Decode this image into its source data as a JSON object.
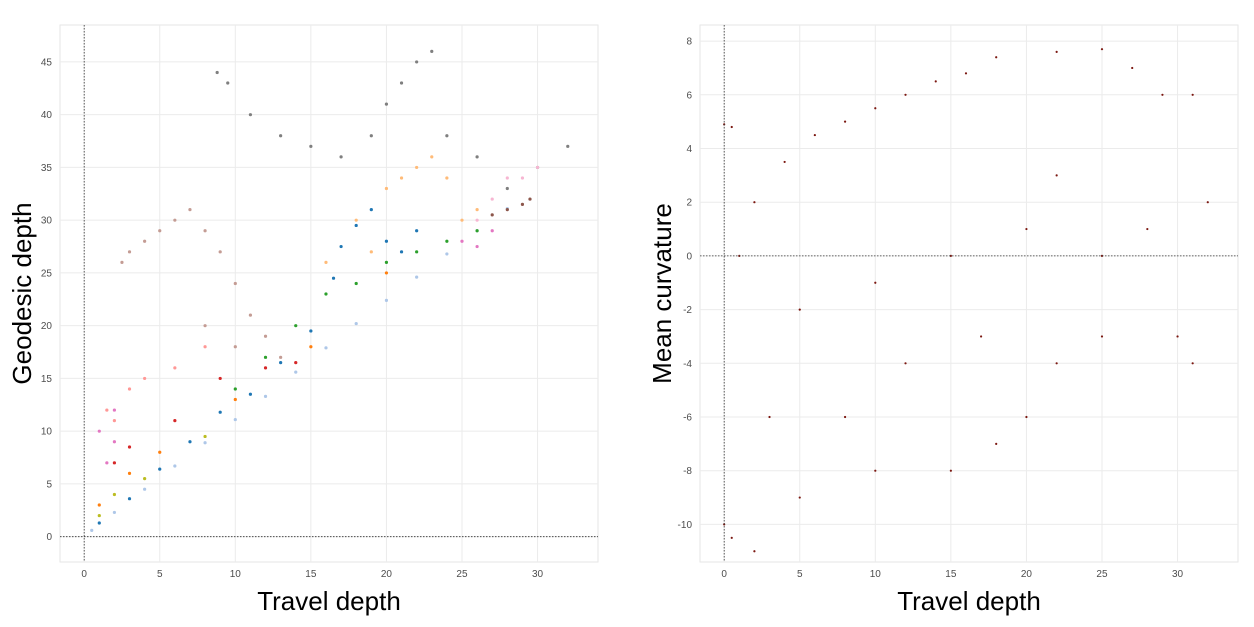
{
  "chart_data": [
    {
      "type": "scatter",
      "xlabel": "Travel depth",
      "ylabel": "Geodesic depth",
      "xlim": [
        -1.6,
        34.0
      ],
      "ylim": [
        -2.4,
        48.5
      ],
      "xticks": [
        0,
        5,
        10,
        15,
        20,
        25,
        30
      ],
      "yticks": [
        0,
        5,
        10,
        15,
        20,
        25,
        30,
        35,
        40,
        45
      ],
      "grid": true,
      "reference_lines": {
        "x": 0,
        "y": 0,
        "style": "dotted"
      },
      "series": [
        {
          "color": "#aec7e8",
          "points": [
            [
              0.5,
              0.6
            ],
            [
              2,
              2.3
            ],
            [
              4,
              4.5
            ],
            [
              6,
              6.7
            ],
            [
              8,
              8.9
            ],
            [
              10,
              11.1
            ],
            [
              12,
              13.3
            ],
            [
              14,
              15.6
            ],
            [
              16,
              17.9
            ],
            [
              18,
              20.2
            ],
            [
              20,
              22.4
            ],
            [
              22,
              24.6
            ],
            [
              24,
              26.8
            ],
            [
              26,
              29.0
            ],
            [
              28,
              31.1
            ]
          ]
        },
        {
          "color": "#1f77b4",
          "points": [
            [
              1,
              1.3
            ],
            [
              3,
              3.6
            ],
            [
              5,
              6.4
            ],
            [
              7,
              9.0
            ],
            [
              9,
              11.8
            ],
            [
              11,
              13.5
            ],
            [
              13,
              16.5
            ],
            [
              15,
              19.5
            ],
            [
              16.5,
              24.5
            ],
            [
              17,
              27.5
            ],
            [
              18,
              29.5
            ],
            [
              19,
              31
            ],
            [
              20,
              28
            ],
            [
              21,
              27
            ],
            [
              22,
              29
            ]
          ]
        },
        {
          "color": "#7f7f7f",
          "points": [
            [
              8.8,
              44
            ],
            [
              9.5,
              43
            ],
            [
              11,
              40
            ],
            [
              13,
              38
            ],
            [
              15,
              37
            ],
            [
              17,
              36
            ],
            [
              19,
              38
            ],
            [
              20,
              41
            ],
            [
              21,
              43
            ],
            [
              22,
              45
            ],
            [
              23,
              46
            ],
            [
              24,
              38
            ],
            [
              26,
              36
            ],
            [
              28,
              33
            ],
            [
              30,
              35
            ],
            [
              32,
              37
            ]
          ]
        },
        {
          "color": "#c49c94",
          "points": [
            [
              2.5,
              26
            ],
            [
              3,
              27
            ],
            [
              4,
              28
            ],
            [
              5,
              29
            ],
            [
              6,
              30
            ],
            [
              7,
              31
            ],
            [
              8,
              29
            ],
            [
              9,
              27
            ],
            [
              10,
              24
            ],
            [
              11,
              21
            ],
            [
              12,
              19
            ],
            [
              13,
              17
            ],
            [
              10,
              18
            ],
            [
              8,
              20
            ]
          ]
        },
        {
          "color": "#ffbb78",
          "points": [
            [
              16,
              26
            ],
            [
              18,
              30
            ],
            [
              20,
              33
            ],
            [
              21,
              34
            ],
            [
              22,
              35
            ],
            [
              23,
              36
            ],
            [
              24,
              34
            ],
            [
              19,
              27
            ],
            [
              25,
              30
            ],
            [
              26,
              31
            ]
          ]
        },
        {
          "color": "#2ca02c",
          "points": [
            [
              10,
              14
            ],
            [
              12,
              17
            ],
            [
              14,
              20
            ],
            [
              16,
              23
            ],
            [
              18,
              24
            ],
            [
              20,
              26
            ],
            [
              22,
              27
            ],
            [
              24,
              28
            ],
            [
              26,
              29
            ]
          ]
        },
        {
          "color": "#d62728",
          "points": [
            [
              2,
              7
            ],
            [
              3,
              8.5
            ],
            [
              6,
              11
            ],
            [
              9,
              15
            ],
            [
              12,
              16
            ],
            [
              14,
              16.5
            ]
          ]
        },
        {
          "color": "#e377c2",
          "points": [
            [
              1,
              10
            ],
            [
              2,
              12
            ],
            [
              2,
              9
            ],
            [
              1.5,
              7
            ],
            [
              25,
              28
            ],
            [
              26,
              27.5
            ],
            [
              27,
              29
            ]
          ]
        },
        {
          "color": "#f7b6d2",
          "points": [
            [
              27,
              32
            ],
            [
              28,
              34
            ],
            [
              29,
              34
            ],
            [
              30,
              35
            ],
            [
              26,
              30
            ]
          ]
        },
        {
          "color": "#ff9896",
          "points": [
            [
              1.5,
              12
            ],
            [
              3,
              14
            ],
            [
              4,
              15
            ],
            [
              6,
              16
            ],
            [
              8,
              18
            ],
            [
              2,
              11
            ]
          ]
        },
        {
          "color": "#8c564b",
          "points": [
            [
              27,
              30.5
            ],
            [
              28,
              31
            ],
            [
              29,
              31.5
            ],
            [
              29.5,
              32
            ]
          ]
        },
        {
          "color": "#ff7f0e",
          "points": [
            [
              1,
              3
            ],
            [
              3,
              6
            ],
            [
              5,
              8
            ],
            [
              10,
              13
            ],
            [
              15,
              18
            ],
            [
              20,
              25
            ]
          ]
        },
        {
          "color": "#bcbd22",
          "points": [
            [
              1,
              2
            ],
            [
              2,
              4
            ],
            [
              4,
              5.5
            ],
            [
              8,
              9.5
            ]
          ]
        }
      ]
    },
    {
      "type": "scatter",
      "xlabel": "Travel depth",
      "ylabel": "Mean curvature",
      "xlim": [
        -1.6,
        34.0
      ],
      "ylim": [
        -11.4,
        8.6
      ],
      "xticks": [
        0,
        5,
        10,
        15,
        20,
        25,
        30
      ],
      "yticks": [
        -10,
        -8,
        -6,
        -4,
        -2,
        0,
        2,
        4,
        6,
        8
      ],
      "grid": true,
      "reference_lines": {
        "x": 0,
        "y": 0,
        "style": "dotted"
      },
      "series": [
        {
          "color": "#7b1710",
          "points": [
            [
              0,
              4.9
            ],
            [
              0.5,
              4.8
            ],
            [
              0,
              -10
            ],
            [
              0.5,
              -10.5
            ],
            [
              2,
              -11
            ],
            [
              5,
              -9
            ],
            [
              10,
              -8
            ],
            [
              15,
              -8
            ],
            [
              18,
              -7
            ],
            [
              20,
              -6
            ],
            [
              22,
              -4
            ],
            [
              25,
              -3
            ],
            [
              30,
              -3
            ],
            [
              31,
              -4
            ],
            [
              32,
              2
            ],
            [
              31,
              6
            ],
            [
              29,
              6
            ],
            [
              27,
              7
            ],
            [
              25,
              7.7
            ],
            [
              22,
              7.6
            ],
            [
              18,
              7.4
            ],
            [
              16,
              6.8
            ],
            [
              14,
              6.5
            ],
            [
              12,
              6
            ],
            [
              10,
              5.5
            ],
            [
              8,
              5
            ],
            [
              6,
              4.5
            ],
            [
              4,
              3.5
            ],
            [
              2,
              2
            ],
            [
              1,
              0
            ],
            [
              5,
              -2
            ],
            [
              10,
              -1
            ],
            [
              15,
              0
            ],
            [
              20,
              1
            ],
            [
              25,
              0
            ],
            [
              12,
              -4
            ],
            [
              8,
              -6
            ],
            [
              3,
              -6
            ],
            [
              17,
              -3
            ],
            [
              22,
              3
            ],
            [
              28,
              1
            ]
          ]
        }
      ]
    }
  ]
}
